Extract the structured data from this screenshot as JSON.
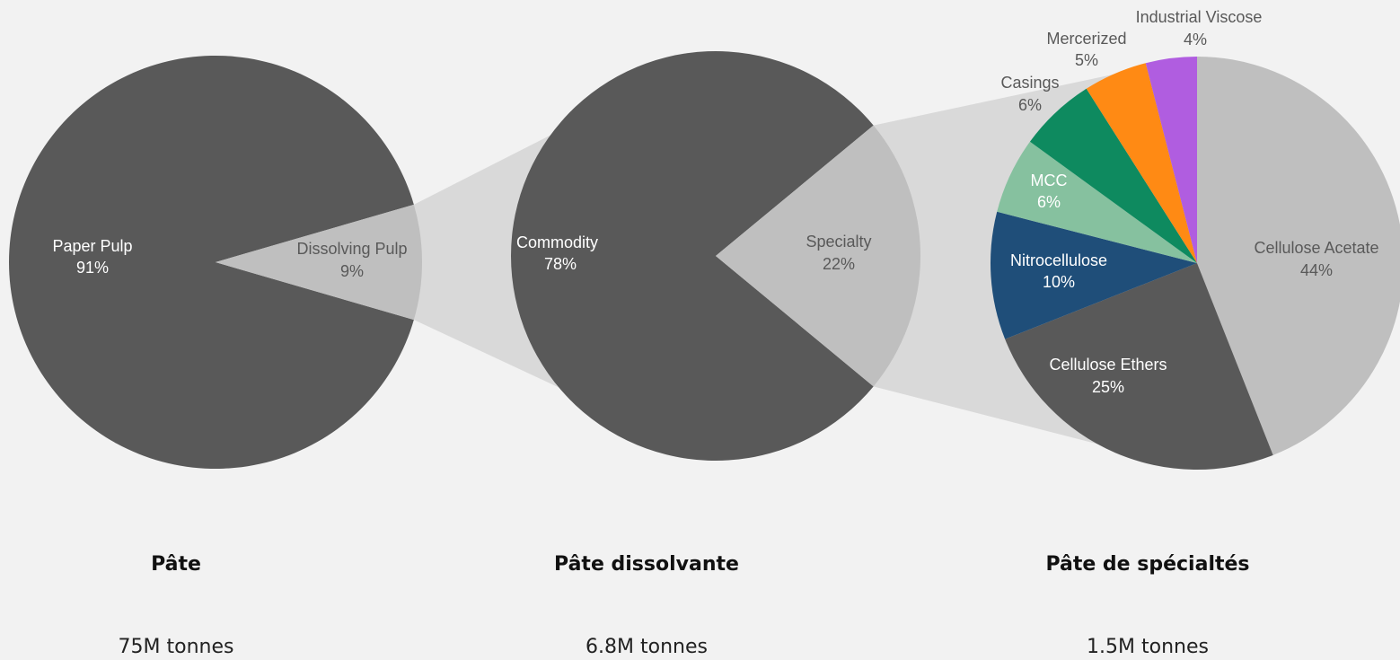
{
  "colors": {
    "background": "#f2f2f2",
    "dark": "#595959",
    "light": "#bfbfbf",
    "connector": "#d9d9d9"
  },
  "chart_data": [
    {
      "type": "pie",
      "title": "Pâte",
      "total": "75M tonnes",
      "slices": [
        {
          "label": "Paper Pulp",
          "pct_label": "91%",
          "value": 91,
          "color": "#595959",
          "text_color": "#ffffff"
        },
        {
          "label": "Dissolving Pulp",
          "pct_label": "9%",
          "value": 9,
          "color": "#bfbfbf",
          "text_color": "#595959"
        }
      ]
    },
    {
      "type": "pie",
      "title": "Pâte dissolvante",
      "total": "6.8M tonnes",
      "slices": [
        {
          "label": "Commodity",
          "pct_label": "78%",
          "value": 78,
          "color": "#595959",
          "text_color": "#ffffff"
        },
        {
          "label": "Specialty",
          "pct_label": "22%",
          "value": 22,
          "color": "#bfbfbf",
          "text_color": "#595959"
        }
      ]
    },
    {
      "type": "pie",
      "title": "Pâte de spécialtés",
      "total": "1.5M tonnes",
      "slices": [
        {
          "label": "Cellulose Acetate",
          "pct_label": "44%",
          "value": 44,
          "color": "#bfbfbf",
          "text_color": "#595959"
        },
        {
          "label": "Cellulose Ethers",
          "pct_label": "25%",
          "value": 25,
          "color": "#595959",
          "text_color": "#ffffff"
        },
        {
          "label": "Nitrocellulose",
          "pct_label": "10%",
          "value": 10,
          "color": "#1f4e79",
          "text_color": "#ffffff"
        },
        {
          "label": "MCC",
          "pct_label": "6%",
          "value": 6,
          "color": "#86c19f",
          "text_color": "#ffffff"
        },
        {
          "label": "Casings",
          "pct_label": "6%",
          "value": 6,
          "color": "#0e8a5f",
          "text_color": "#595959"
        },
        {
          "label": "Mercerized",
          "pct_label": "5%",
          "value": 5,
          "color": "#ff8a14",
          "text_color": "#595959"
        },
        {
          "label": "Industrial Viscose",
          "pct_label": "4%",
          "value": 4,
          "color": "#b05de0",
          "text_color": "#595959"
        }
      ]
    }
  ]
}
